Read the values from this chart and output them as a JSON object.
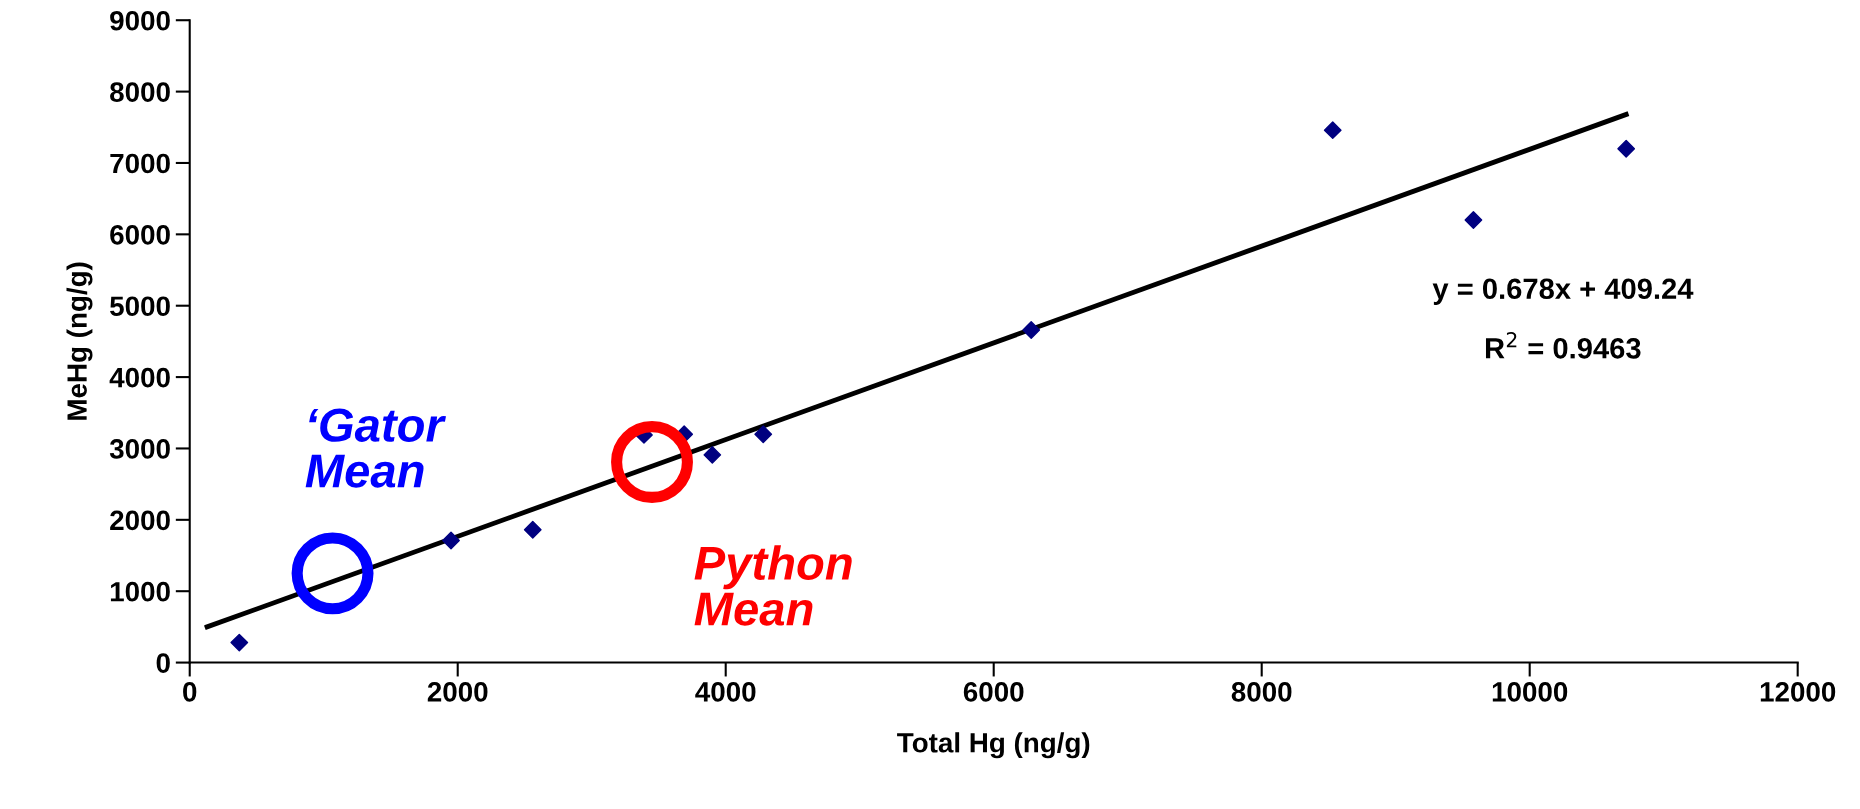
{
  "chart_data": {
    "type": "scatter",
    "xlabel": "Total Hg (ng/g)",
    "ylabel": "MeHg (ng/g)",
    "xlim": [
      0,
      12000
    ],
    "xticks": [
      0,
      2000,
      4000,
      6000,
      8000,
      10000,
      12000
    ],
    "ylim": [
      0,
      9000
    ],
    "yticks": [
      0,
      1000,
      2000,
      3000,
      4000,
      5000,
      6000,
      7000,
      8000,
      9000
    ],
    "grid": false,
    "legend": false,
    "series": [
      {
        "marker": "diamond",
        "color": "#000080",
        "x": [
          370,
          1950,
          2560,
          3390,
          3690,
          3900,
          4280,
          6280,
          8530,
          9580,
          10720
        ],
        "values": [
          280,
          1710,
          1860,
          3190,
          3200,
          2910,
          3200,
          4660,
          7460,
          6200,
          7200
        ]
      },
      {
        "type": "line",
        "marker": "none",
        "line_style": "solid",
        "color": "#000000",
        "x": [
          130,
          10720
        ],
        "values": [
          500,
          7680
        ]
      },
      {
        "type": "scatter",
        "marker": "circle",
        "name": "‘Gator Mean",
        "color": "#0000ff",
        "x": [
          1066
        ],
        "values": [
          1250
        ]
      },
      {
        "type": "scatter",
        "marker": "circle",
        "name": "Python Mean",
        "color": "#ff0000",
        "x": [
          3450
        ],
        "values": [
          2810
        ]
      }
    ],
    "annotations": [
      "y = 0.678x + 409.24",
      "R$^{2}$ = 0.9463"
    ]
  }
}
